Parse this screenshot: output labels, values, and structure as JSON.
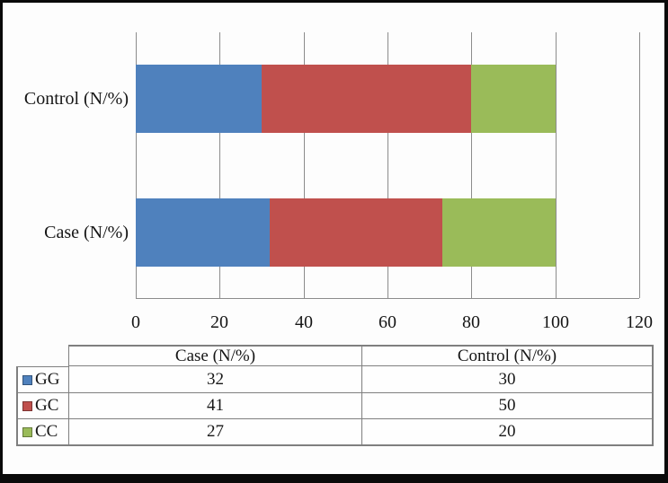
{
  "chart_data": {
    "type": "bar",
    "orientation": "horizontal",
    "stacked": true,
    "title": "",
    "xlabel": "",
    "ylabel": "",
    "categories": [
      "Control (N/%)",
      "Case (N/%)"
    ],
    "series": [
      {
        "name": "GG",
        "color": "#4F81BD",
        "values": [
          30,
          32
        ]
      },
      {
        "name": "GC",
        "color": "#C0504D",
        "values": [
          50,
          41
        ]
      },
      {
        "name": "CC",
        "color": "#9ABB59",
        "values": [
          20,
          27
        ]
      }
    ],
    "xlim": [
      0,
      120
    ],
    "xticks": [
      0,
      20,
      40,
      60,
      80,
      100,
      120
    ],
    "grid": "vertical gridlines on",
    "legend_position": "data table below chart"
  },
  "table": {
    "columns": [
      "Case (N/%)",
      "Control (N/%)"
    ],
    "rows": [
      {
        "label": "GG",
        "key_color": "#4F81BD",
        "case": "32",
        "control": "30"
      },
      {
        "label": "GC",
        "key_color": "#C0504D",
        "case": "41",
        "control": "50"
      },
      {
        "label": "CC",
        "key_color": "#9ABB59",
        "case": "27",
        "control": "20"
      }
    ]
  },
  "colors": {
    "series_gg": "#4F81BD",
    "series_gc": "#C0504D",
    "series_cc": "#9ABB59",
    "gridline": "#8C8C8C",
    "table_border": "#7F7F7F",
    "frame": "#0A0A0A"
  }
}
